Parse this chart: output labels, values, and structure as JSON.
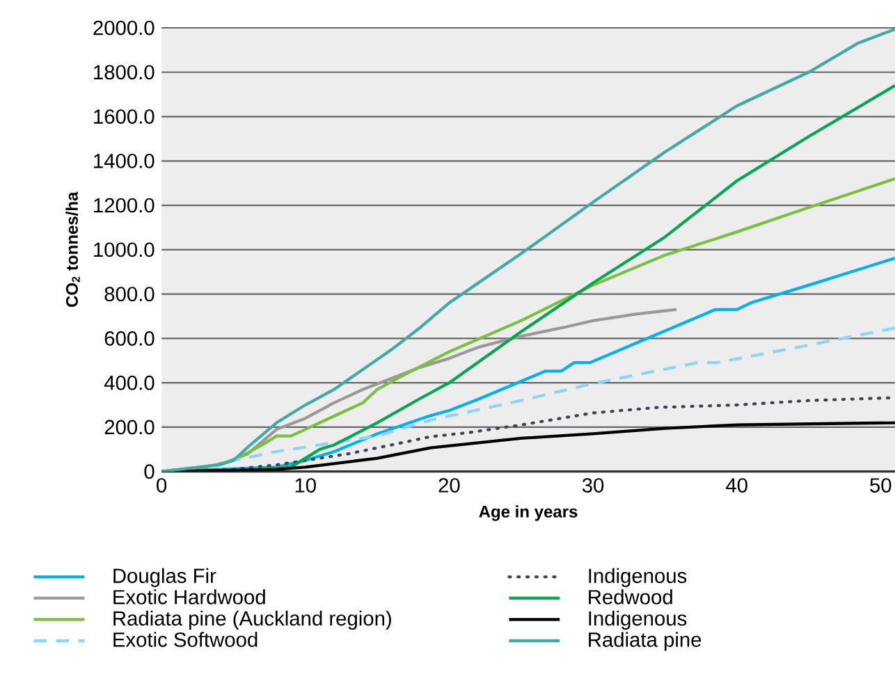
{
  "chart_data": {
    "type": "line",
    "xlabel": "Age in years",
    "ylabel": "CO$_{2}$ tonnes/ha",
    "xlim": [
      0,
      51
    ],
    "ylim": [
      0,
      2000
    ],
    "xticks": [
      0,
      10,
      20,
      30,
      40,
      50
    ],
    "yticks": [
      0,
      {
        "value": 200,
        "label": "200.0"
      },
      {
        "value": 400,
        "label": "400.0"
      },
      {
        "value": 600,
        "label": "600.0"
      },
      {
        "value": 800,
        "label": "800.0"
      },
      {
        "value": 1000,
        "label": "1000.0"
      },
      {
        "value": 1200,
        "label": "1200.0"
      },
      {
        "value": 1400,
        "label": "1400.0"
      },
      {
        "value": 1600,
        "label": "1600.0"
      },
      {
        "value": 1800,
        "label": "1800.0"
      },
      {
        "value": 2000,
        "label": "2000.0"
      }
    ],
    "grid": "y",
    "legend": "bottom",
    "marker": "none",
    "series": [
      {
        "name": "Douglas Fir",
        "color": "#00b0f0",
        "line_style": "solid",
        "x": [
          0,
          8,
          10,
          12,
          15,
          18.7,
          20,
          22,
          26.7,
          27.8,
          28.7,
          29.8,
          38.5,
          40,
          41,
          45,
          51
        ],
        "values": [
          0,
          20,
          50,
          90,
          170,
          252,
          275,
          325,
          453,
          453,
          491,
          491,
          730,
          730,
          761,
          840,
          962
        ]
      },
      {
        "name": "Exotic Hardwood",
        "color": "#999999",
        "line_style": "solid",
        "x": [
          0,
          4,
          6,
          8,
          10,
          12,
          14,
          16,
          18,
          20,
          22,
          25,
          28,
          30,
          33,
          35.8
        ],
        "values": [
          0,
          30,
          80,
          190,
          240,
          310,
          370,
          420,
          470,
          510,
          560,
          610,
          650,
          680,
          710,
          730
        ]
      },
      {
        "name": "Radiata pine (Auckland region)",
        "color": "#7ac143",
        "line_style": "solid",
        "x": [
          0,
          3,
          5,
          7,
          8,
          9,
          10,
          12,
          14,
          15,
          17,
          20,
          25,
          30,
          35,
          40,
          45,
          51
        ],
        "values": [
          0,
          20,
          50,
          120,
          160,
          160,
          190,
          250,
          310,
          370,
          440,
          540,
          680,
          840,
          975,
          1080,
          1190,
          1320
        ]
      },
      {
        "name": "Exotic Softwood",
        "color": "#8fd3f5",
        "line_style": "dashed",
        "x": [
          0,
          3,
          5,
          8,
          10,
          15,
          18.7,
          25,
          30,
          37.3,
          38.6,
          44.4,
          51
        ],
        "values": [
          0,
          20,
          50,
          90,
          110,
          160,
          232,
          320,
          397,
          491,
          491,
          562,
          647
        ]
      },
      {
        "name": "Indigenous",
        "color": "#3c4650",
        "line_style": "dotted",
        "x": [
          0,
          5,
          8,
          10,
          13,
          16,
          18.7,
          21.4,
          25,
          30,
          34.5,
          40,
          45,
          51
        ],
        "values": [
          0,
          10,
          30,
          50,
          80,
          120,
          157,
          176,
          210,
          264,
          289,
          300,
          320,
          333
        ]
      },
      {
        "name": "Redwood",
        "color": "#00a651",
        "line_style": "solid",
        "x": [
          0,
          7,
          9,
          10,
          11,
          12,
          15,
          18,
          20,
          25,
          30,
          35,
          40,
          45,
          51
        ],
        "values": [
          0,
          10,
          20,
          60,
          100,
          120,
          220,
          330,
          400,
          630,
          850,
          1057,
          1310,
          1510,
          1740
        ]
      },
      {
        "name": "Indigenous",
        "color": "#000000",
        "line_style": "solid",
        "x": [
          0,
          8,
          10,
          15,
          18.7,
          25,
          30,
          35,
          40,
          51
        ],
        "values": [
          0,
          10,
          20,
          60,
          107,
          150,
          170,
          195,
          210,
          220
        ]
      },
      {
        "name": "Radiata pine",
        "color": "#40aaa6",
        "line_style": "solid",
        "x": [
          0,
          4,
          5,
          6,
          8,
          10,
          12,
          14,
          16,
          18,
          20,
          25,
          30,
          35,
          40,
          45,
          48.4,
          51
        ],
        "values": [
          0,
          30,
          50,
          110,
          220,
          300,
          370,
          460,
          550,
          650,
          760,
          982,
          1214,
          1440,
          1648,
          1800,
          1930,
          1994
        ]
      }
    ]
  }
}
